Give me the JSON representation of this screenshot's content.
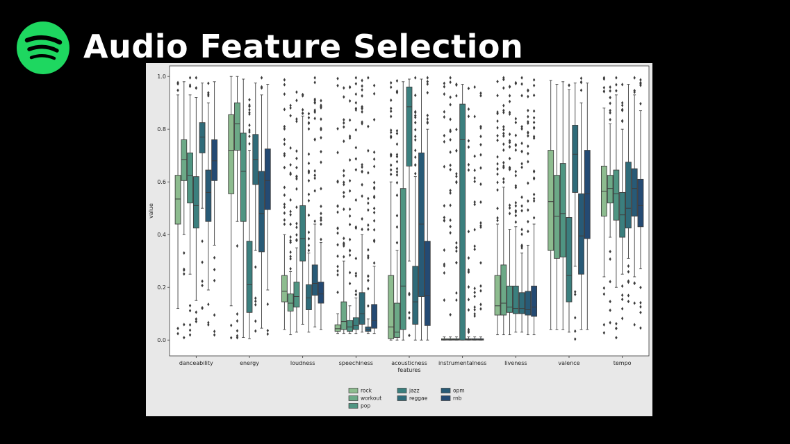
{
  "slide": {
    "title": "Audio Feature Selection",
    "logo_icon": "spotify-logo-icon",
    "logo_color": "#1ed760"
  },
  "chart_data": {
    "type": "box",
    "title": "",
    "xlabel": "features",
    "ylabel": "value",
    "ylim": [
      -0.06,
      1.04
    ],
    "yticks": [
      "0.0",
      "0.2",
      "0.4",
      "0.6",
      "0.8",
      "1.0"
    ],
    "grid": false,
    "legend_placement": "bottom-center",
    "categories": [
      "danceability",
      "energy",
      "loudness",
      "speechiness",
      "acousticness",
      "instrumentalness",
      "liveness",
      "valence",
      "tempo"
    ],
    "series": [
      {
        "name": "rock",
        "color": "#8dbc8f",
        "boxes": [
          {
            "q1": 0.44,
            "median": 0.535,
            "q3": 0.625,
            "whislo": 0.12,
            "whishi": 0.93
          },
          {
            "q1": 0.555,
            "median": 0.72,
            "q3": 0.855,
            "whislo": 0.13,
            "whishi": 1.0
          },
          {
            "q1": 0.145,
            "median": 0.185,
            "q3": 0.245,
            "whislo": 0.04,
            "whishi": 0.4
          },
          {
            "q1": 0.033,
            "median": 0.043,
            "q3": 0.058,
            "whislo": 0.025,
            "whishi": 0.1
          },
          {
            "q1": 0.005,
            "median": 0.05,
            "q3": 0.245,
            "whislo": 0.0,
            "whishi": 0.6
          },
          {
            "q1": 0.0,
            "median": 0.002,
            "q3": 0.005,
            "whislo": 0.0,
            "whishi": 0.012
          },
          {
            "q1": 0.095,
            "median": 0.13,
            "q3": 0.245,
            "whislo": 0.02,
            "whishi": 0.44
          },
          {
            "q1": 0.34,
            "median": 0.525,
            "q3": 0.72,
            "whislo": 0.04,
            "whishi": 0.985
          },
          {
            "q1": 0.47,
            "median": 0.565,
            "q3": 0.66,
            "whislo": 0.24,
            "whishi": 0.88
          }
        ]
      },
      {
        "name": "workout",
        "color": "#6ca987",
        "boxes": [
          {
            "q1": 0.605,
            "median": 0.685,
            "q3": 0.76,
            "whislo": 0.4,
            "whishi": 0.98
          },
          {
            "q1": 0.72,
            "median": 0.82,
            "q3": 0.9,
            "whislo": 0.45,
            "whishi": 1.0
          },
          {
            "q1": 0.11,
            "median": 0.14,
            "q3": 0.175,
            "whislo": 0.02,
            "whishi": 0.26
          },
          {
            "q1": 0.04,
            "median": 0.07,
            "q3": 0.145,
            "whislo": 0.025,
            "whishi": 0.3
          },
          {
            "q1": 0.01,
            "median": 0.03,
            "q3": 0.14,
            "whislo": 0.0,
            "whishi": 0.34
          },
          {
            "q1": 0.0,
            "median": 0.002,
            "q3": 0.005,
            "whislo": 0.0,
            "whishi": 0.012
          },
          {
            "q1": 0.095,
            "median": 0.14,
            "q3": 0.285,
            "whislo": 0.02,
            "whishi": 0.58
          },
          {
            "q1": 0.31,
            "median": 0.47,
            "q3": 0.625,
            "whislo": 0.04,
            "whishi": 0.97
          },
          {
            "q1": 0.52,
            "median": 0.575,
            "q3": 0.625,
            "whislo": 0.39,
            "whishi": 0.82
          }
        ]
      },
      {
        "name": "pop",
        "color": "#4f9582",
        "boxes": [
          {
            "q1": 0.52,
            "median": 0.625,
            "q3": 0.71,
            "whislo": 0.25,
            "whishi": 0.93
          },
          {
            "q1": 0.45,
            "median": 0.64,
            "q3": 0.785,
            "whislo": 0.01,
            "whishi": 0.99
          },
          {
            "q1": 0.125,
            "median": 0.165,
            "q3": 0.22,
            "whislo": 0.03,
            "whishi": 0.35
          },
          {
            "q1": 0.033,
            "median": 0.05,
            "q3": 0.075,
            "whislo": 0.025,
            "whishi": 0.13
          },
          {
            "q1": 0.04,
            "median": 0.205,
            "q3": 0.575,
            "whislo": 0.0,
            "whishi": 0.98
          },
          {
            "q1": 0.0,
            "median": 0.002,
            "q3": 0.005,
            "whislo": 0.0,
            "whishi": 0.012
          },
          {
            "q1": 0.105,
            "median": 0.125,
            "q3": 0.205,
            "whislo": 0.02,
            "whishi": 0.42
          },
          {
            "q1": 0.315,
            "median": 0.48,
            "q3": 0.67,
            "whislo": 0.04,
            "whishi": 0.98
          },
          {
            "q1": 0.455,
            "median": 0.555,
            "q3": 0.645,
            "whislo": 0.2,
            "whishi": 0.93
          }
        ]
      },
      {
        "name": "jazz",
        "color": "#3b7f7e",
        "boxes": [
          {
            "q1": 0.425,
            "median": 0.51,
            "q3": 0.62,
            "whislo": 0.15,
            "whishi": 0.92
          },
          {
            "q1": 0.105,
            "median": 0.21,
            "q3": 0.375,
            "whislo": 0.005,
            "whishi": 0.72
          },
          {
            "q1": 0.3,
            "median": 0.385,
            "q3": 0.51,
            "whislo": 0.06,
            "whishi": 0.85
          },
          {
            "q1": 0.04,
            "median": 0.055,
            "q3": 0.085,
            "whislo": 0.025,
            "whishi": 0.16
          },
          {
            "q1": 0.66,
            "median": 0.885,
            "q3": 0.96,
            "whislo": 0.3,
            "whishi": 0.99
          },
          {
            "q1": 0.0,
            "median": 0.76,
            "q3": 0.895,
            "whislo": 0.0,
            "whishi": 0.97
          },
          {
            "q1": 0.1,
            "median": 0.12,
            "q3": 0.205,
            "whislo": 0.03,
            "whishi": 0.43
          },
          {
            "q1": 0.145,
            "median": 0.245,
            "q3": 0.465,
            "whislo": 0.03,
            "whishi": 0.95
          },
          {
            "q1": 0.39,
            "median": 0.475,
            "q3": 0.56,
            "whislo": 0.25,
            "whishi": 0.8
          }
        ]
      },
      {
        "name": "reggae",
        "color": "#2f6b79",
        "boxes": [
          {
            "q1": 0.71,
            "median": 0.77,
            "q3": 0.825,
            "whislo": 0.5,
            "whishi": 0.975
          },
          {
            "q1": 0.59,
            "median": 0.685,
            "q3": 0.78,
            "whislo": 0.34,
            "whishi": 0.975
          },
          {
            "q1": 0.115,
            "median": 0.16,
            "q3": 0.21,
            "whislo": 0.03,
            "whishi": 0.33
          },
          {
            "q1": 0.06,
            "median": 0.1,
            "q3": 0.18,
            "whislo": 0.03,
            "whishi": 0.4
          },
          {
            "q1": 0.06,
            "median": 0.145,
            "q3": 0.28,
            "whislo": 0.0,
            "whishi": 0.62
          },
          {
            "q1": 0.0,
            "median": 0.002,
            "q3": 0.005,
            "whislo": 0.0,
            "whishi": 0.012
          },
          {
            "q1": 0.1,
            "median": 0.12,
            "q3": 0.18,
            "whislo": 0.03,
            "whishi": 0.33
          },
          {
            "q1": 0.56,
            "median": 0.705,
            "q3": 0.815,
            "whislo": 0.28,
            "whishi": 0.975
          },
          {
            "q1": 0.425,
            "median": 0.5,
            "q3": 0.675,
            "whislo": 0.31,
            "whishi": 0.97
          }
        ]
      },
      {
        "name": "opm",
        "color": "#285a76",
        "boxes": [
          {
            "q1": 0.45,
            "median": 0.56,
            "q3": 0.645,
            "whislo": 0.19,
            "whishi": 0.9
          },
          {
            "q1": 0.335,
            "median": 0.48,
            "q3": 0.64,
            "whislo": 0.045,
            "whishi": 0.93
          },
          {
            "q1": 0.17,
            "median": 0.215,
            "q3": 0.285,
            "whislo": 0.05,
            "whishi": 0.44
          },
          {
            "q1": 0.033,
            "median": 0.04,
            "q3": 0.05,
            "whislo": 0.025,
            "whishi": 0.08
          },
          {
            "q1": 0.165,
            "median": 0.44,
            "q3": 0.71,
            "whislo": 0.0,
            "whishi": 0.99
          },
          {
            "q1": 0.0,
            "median": 0.002,
            "q3": 0.005,
            "whislo": 0.0,
            "whishi": 0.012
          },
          {
            "q1": 0.095,
            "median": 0.115,
            "q3": 0.185,
            "whislo": 0.02,
            "whishi": 0.36
          },
          {
            "q1": 0.25,
            "median": 0.395,
            "q3": 0.555,
            "whislo": 0.04,
            "whishi": 0.9
          },
          {
            "q1": 0.47,
            "median": 0.575,
            "q3": 0.65,
            "whislo": 0.24,
            "whishi": 0.93
          }
        ]
      },
      {
        "name": "rnb",
        "color": "#244a73",
        "boxes": [
          {
            "q1": 0.605,
            "median": 0.68,
            "q3": 0.76,
            "whislo": 0.36,
            "whishi": 0.98
          },
          {
            "q1": 0.495,
            "median": 0.605,
            "q3": 0.725,
            "whislo": 0.19,
            "whishi": 0.97
          },
          {
            "q1": 0.14,
            "median": 0.175,
            "q3": 0.22,
            "whislo": 0.04,
            "whishi": 0.37
          },
          {
            "q1": 0.045,
            "median": 0.075,
            "q3": 0.135,
            "whislo": 0.025,
            "whishi": 0.28
          },
          {
            "q1": 0.055,
            "median": 0.17,
            "q3": 0.375,
            "whislo": 0.0,
            "whishi": 0.8
          },
          {
            "q1": 0.0,
            "median": 0.002,
            "q3": 0.005,
            "whislo": 0.0,
            "whishi": 0.012
          },
          {
            "q1": 0.09,
            "median": 0.125,
            "q3": 0.205,
            "whislo": 0.02,
            "whishi": 0.44
          },
          {
            "q1": 0.385,
            "median": 0.555,
            "q3": 0.72,
            "whislo": 0.04,
            "whishi": 0.975
          },
          {
            "q1": 0.43,
            "median": 0.51,
            "q3": 0.61,
            "whislo": 0.27,
            "whishi": 0.87
          }
        ]
      }
    ],
    "legend_labels": [
      "rock",
      "workout",
      "pop",
      "jazz",
      "reggae",
      "opm",
      "rnb"
    ],
    "legend_display": [
      "rock",
      "workout",
      "pop",
      "jazz",
      "reggae",
      "opm",
      "rnb"
    ]
  }
}
